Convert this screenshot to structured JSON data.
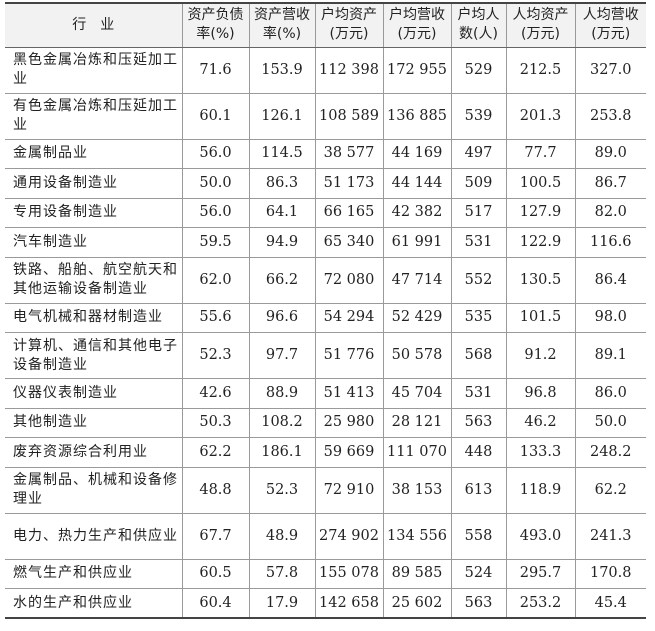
{
  "table": {
    "headers": [
      "行　业",
      "资产负债率(%)",
      "资产营收率(%)",
      "户均资产(万元)",
      "户均营收(万元)",
      "户均人数(人)",
      "人均资产(万元)",
      "人均营收(万元)"
    ],
    "rows": [
      [
        "黑色金属冶炼和压延加工业",
        "71.6",
        "153.9",
        "112 398",
        "172 955",
        "529",
        "212.5",
        "327.0"
      ],
      [
        "有色金属冶炼和压延加工业",
        "60.1",
        "126.1",
        "108 589",
        "136 885",
        "539",
        "201.3",
        "253.8"
      ],
      [
        "金属制品业",
        "56.0",
        "114.5",
        "38 577",
        "44 169",
        "497",
        "77.7",
        "89.0"
      ],
      [
        "通用设备制造业",
        "50.0",
        "86.3",
        "51 173",
        "44 144",
        "509",
        "100.5",
        "86.7"
      ],
      [
        "专用设备制造业",
        "56.0",
        "64.1",
        "66 165",
        "42 382",
        "517",
        "127.9",
        "82.0"
      ],
      [
        "汽车制造业",
        "59.5",
        "94.9",
        "65 340",
        "61 991",
        "531",
        "122.9",
        "116.6"
      ],
      [
        "铁路、船舶、航空航天和其他运输设备制造业",
        "62.0",
        "66.2",
        "72 080",
        "47 714",
        "552",
        "130.5",
        "86.4"
      ],
      [
        "电气机械和器材制造业",
        "55.6",
        "96.6",
        "54 294",
        "52 429",
        "535",
        "101.5",
        "98.0"
      ],
      [
        "计算机、通信和其他电子设备制造业",
        "52.3",
        "97.7",
        "51 776",
        "50 578",
        "568",
        "91.2",
        "89.1"
      ],
      [
        "仪器仪表制造业",
        "42.6",
        "88.9",
        "51 413",
        "45 704",
        "531",
        "96.8",
        "86.0"
      ],
      [
        "其他制造业",
        "50.3",
        "108.2",
        "25 980",
        "28 121",
        "563",
        "46.2",
        "50.0"
      ],
      [
        "废弃资源综合利用业",
        "62.2",
        "186.1",
        "59 669",
        "111 070",
        "448",
        "133.3",
        "248.2"
      ],
      [
        "金属制品、机械和设备修理业",
        "48.8",
        "52.3",
        "72 910",
        "38 153",
        "613",
        "118.9",
        "62.2"
      ],
      [
        "电力、热力生产和供应业",
        "67.7",
        "48.9",
        "274 902",
        "134 556",
        "558",
        "493.0",
        "241.3"
      ],
      [
        "燃气生产和供应业",
        "60.5",
        "57.8",
        "155 078",
        "89 585",
        "524",
        "295.7",
        "170.8"
      ],
      [
        "水的生产和供应业",
        "60.4",
        "17.9",
        "142 658",
        "25 602",
        "563",
        "253.2",
        "45.4"
      ]
    ]
  }
}
